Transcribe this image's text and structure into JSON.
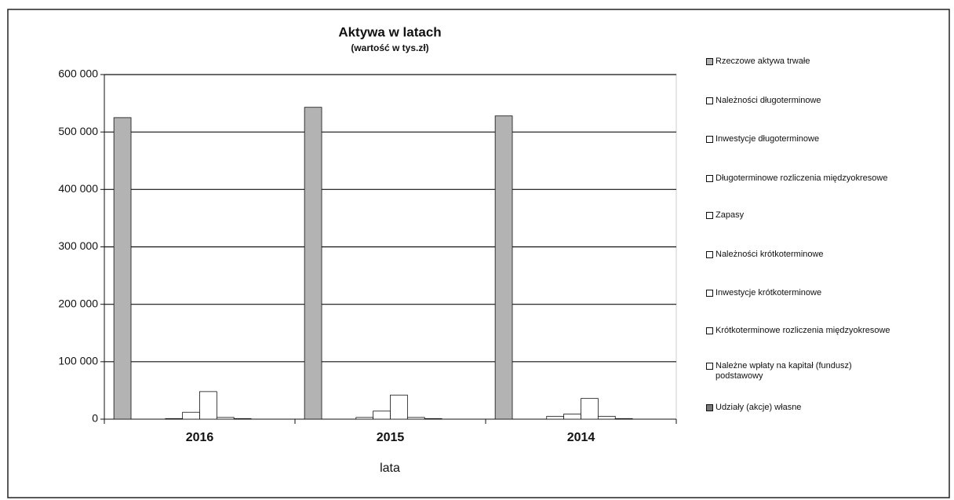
{
  "chart_data": {
    "type": "bar",
    "title": "Aktywa w latach",
    "subtitle": "(wartość w tys.zł)",
    "x_label": "lata",
    "categories": [
      "2016",
      "2015",
      "2014"
    ],
    "ylim": [
      0,
      600000
    ],
    "yticks": [
      {
        "value": 0,
        "label": "0"
      },
      {
        "value": 100000,
        "label": "100 000"
      },
      {
        "value": 200000,
        "label": "200 000"
      },
      {
        "value": 300000,
        "label": "300 000"
      },
      {
        "value": 400000,
        "label": "400 000"
      },
      {
        "value": 500000,
        "label": "500 000"
      },
      {
        "value": 600000,
        "label": "600 000"
      }
    ],
    "grid": true,
    "legend": "right",
    "series": [
      {
        "name": "Rzeczowe aktywa trwałe",
        "color": "#b3b3b3",
        "values": [
          525000,
          543000,
          528000
        ]
      },
      {
        "name": "Należności długoterminowe",
        "color": "#ffffff",
        "values": [
          0,
          0,
          0
        ]
      },
      {
        "name": "Inwestycje długoterminowe",
        "color": "#ffffff",
        "values": [
          0,
          0,
          0
        ]
      },
      {
        "name": "Długoterminowe rozliczenia międzyokresowe",
        "color": "#ffffff",
        "values": [
          1000,
          3000,
          5000
        ]
      },
      {
        "name": "Zapasy",
        "color": "#ffffff",
        "values": [
          12000,
          14000,
          9000
        ]
      },
      {
        "name": "Należności krótkoterminowe",
        "color": "#ffffff",
        "values": [
          48000,
          42000,
          36000
        ]
      },
      {
        "name": "Inwestycje krótkoterminowe",
        "color": "#ffffff",
        "values": [
          3000,
          3000,
          5000
        ]
      },
      {
        "name": "Krótkoterminowe rozliczenia międzyokresowe",
        "color": "#ffffff",
        "values": [
          1000,
          1000,
          1000
        ]
      },
      {
        "name": "Należne wpłaty na kapitał (fundusz) podstawowy",
        "color": "#ffffff",
        "values": [
          0,
          0,
          0
        ]
      },
      {
        "name": "Udziały (akcje) własne",
        "color": "#777777",
        "values": [
          0,
          0,
          0
        ]
      }
    ]
  }
}
